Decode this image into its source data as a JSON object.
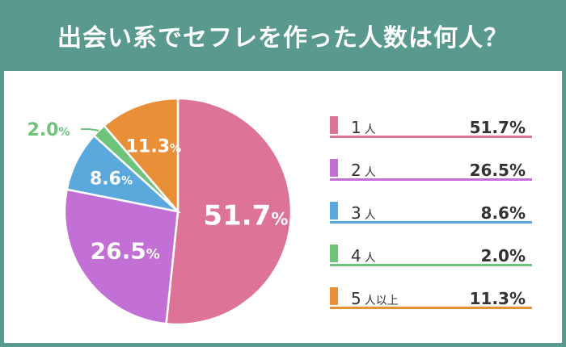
{
  "title": "出会い系でセフレを作った人数は何人？",
  "chart_data": {
    "type": "pie",
    "categories": [
      "1人",
      "2人",
      "3人",
      "4人",
      "5人以上"
    ],
    "values": [
      51.7,
      26.5,
      8.6,
      2.0,
      11.3
    ],
    "value_labels": [
      "51.7",
      "26.5",
      "8.6",
      "2.0",
      "11.3"
    ],
    "unit": "%",
    "colors": [
      "#de7399",
      "#c26fd6",
      "#5aa8dc",
      "#6ec47a",
      "#e88f38"
    ],
    "legend": [
      {
        "num": "1",
        "suffix": "人",
        "value": "51.7%"
      },
      {
        "num": "2",
        "suffix": "人",
        "value": "26.5%"
      },
      {
        "num": "3",
        "suffix": "人",
        "value": "8.6%"
      },
      {
        "num": "4",
        "suffix": "人",
        "value": "2.0%"
      },
      {
        "num": "5",
        "suffix": "人以上",
        "value": "11.3%"
      }
    ],
    "legend_placement": "right"
  }
}
